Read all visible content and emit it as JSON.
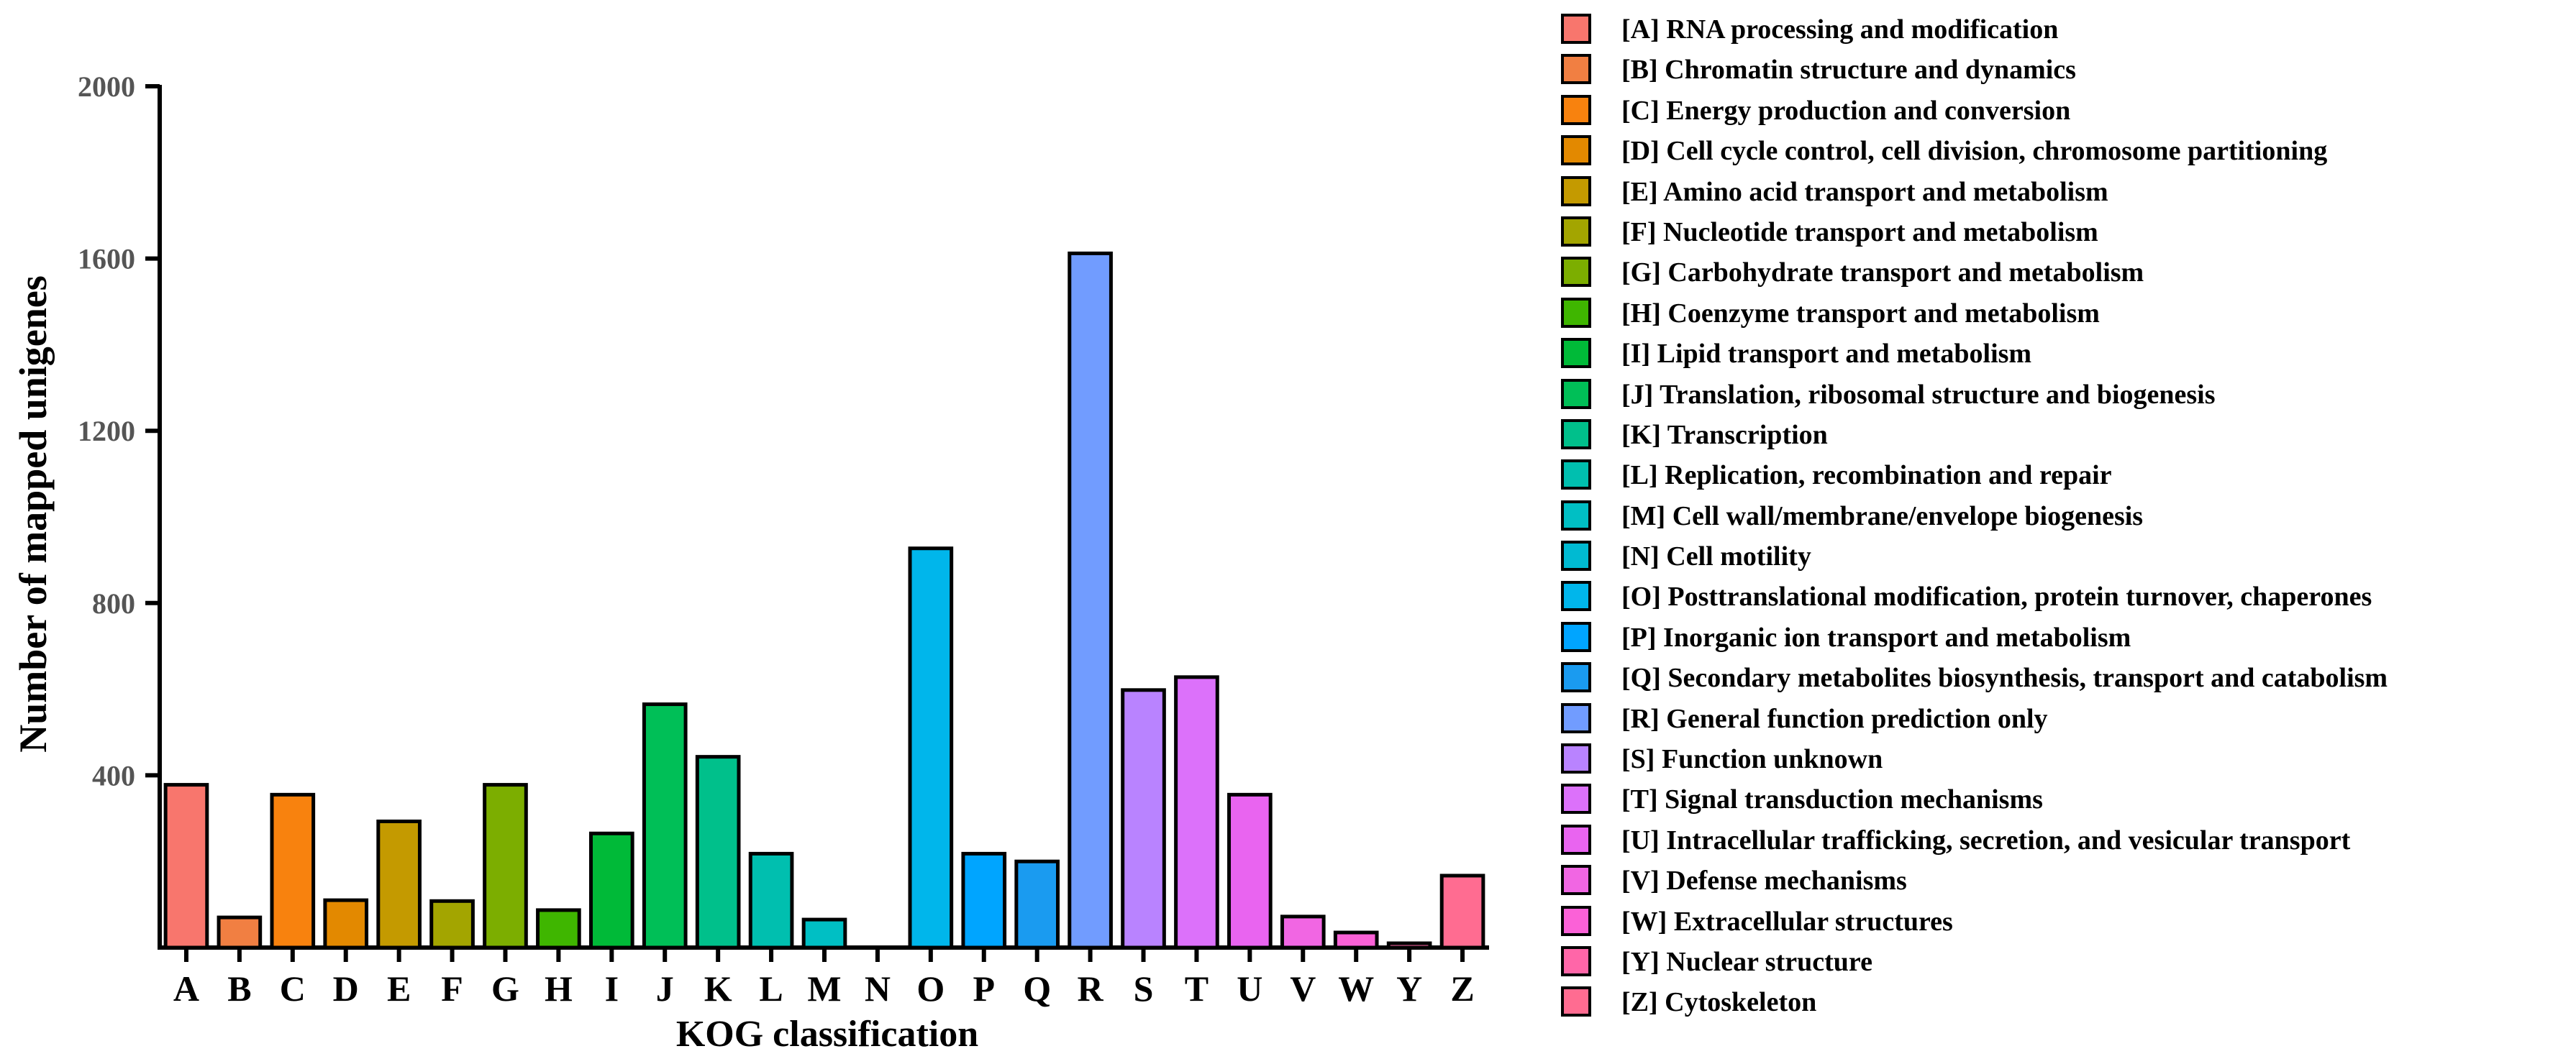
{
  "chart_data": {
    "type": "bar",
    "title": "",
    "xlabel": "KOG classification",
    "ylabel": "Number of mapped unigenes",
    "ylim": [
      0,
      2000
    ],
    "yticks": [
      400,
      800,
      1200,
      1600,
      2000
    ],
    "grid": false,
    "legend_position": "right",
    "categories": [
      "A",
      "B",
      "C",
      "D",
      "E",
      "F",
      "G",
      "H",
      "I",
      "J",
      "K",
      "L",
      "M",
      "N",
      "O",
      "P",
      "Q",
      "R",
      "S",
      "T",
      "U",
      "V",
      "W",
      "Y",
      "Z"
    ],
    "values": [
      378,
      70,
      355,
      110,
      293,
      108,
      378,
      87,
      265,
      565,
      443,
      218,
      65,
      0,
      927,
      218,
      200,
      1612,
      598,
      628,
      355,
      72,
      35,
      10,
      167
    ],
    "colors": [
      "#F8766D",
      "#F17F42",
      "#F8820E",
      "#E38900",
      "#C49A00",
      "#A3A500",
      "#7CAE00",
      "#3FB600",
      "#00BA38",
      "#00BF57",
      "#00C08B",
      "#00BFAF",
      "#00BFC4",
      "#00BAD2",
      "#00B6EB",
      "#00A5FF",
      "#1A9BF0",
      "#719CFF",
      "#B983FF",
      "#DC71FA",
      "#E964F0",
      "#F166E3",
      "#FB61D7",
      "#FF66A8",
      "#FF6C91"
    ],
    "legend": [
      {
        "key": "[A]",
        "label": "RNA processing and modification"
      },
      {
        "key": "[B]",
        "label": "Chromatin structure and dynamics"
      },
      {
        "key": "[C]",
        "label": "Energy production and conversion"
      },
      {
        "key": "[D]",
        "label": "Cell cycle control, cell division, chromosome partitioning"
      },
      {
        "key": "[E]",
        "label": "Amino acid transport and metabolism"
      },
      {
        "key": "[F]",
        "label": "Nucleotide transport and metabolism"
      },
      {
        "key": "[G]",
        "label": "Carbohydrate transport and metabolism"
      },
      {
        "key": "[H]",
        "label": "Coenzyme transport and metabolism"
      },
      {
        "key": "[I]",
        "label": "Lipid transport and metabolism"
      },
      {
        "key": "[J]",
        "label": "Translation, ribosomal structure and biogenesis"
      },
      {
        "key": "[K]",
        "label": "Transcription"
      },
      {
        "key": "[L]",
        "label": "Replication, recombination and repair"
      },
      {
        "key": "[M]",
        "label": "Cell wall/membrane/envelope biogenesis"
      },
      {
        "key": "[N]",
        "label": "Cell motility"
      },
      {
        "key": "[O]",
        "label": "Posttranslational modification, protein turnover, chaperones"
      },
      {
        "key": "[P]",
        "label": "Inorganic ion transport and metabolism"
      },
      {
        "key": "[Q]",
        "label": "Secondary metabolites biosynthesis, transport and catabolism"
      },
      {
        "key": "[R]",
        "label": "General function prediction only"
      },
      {
        "key": "[S]",
        "label": "Function unknown"
      },
      {
        "key": "[T]",
        "label": "Signal transduction mechanisms"
      },
      {
        "key": "[U]",
        "label": "Intracellular trafficking, secretion, and vesicular transport"
      },
      {
        "key": "[V]",
        "label": "Defense mechanisms"
      },
      {
        "key": "[W]",
        "label": "Extracellular structures"
      },
      {
        "key": "[Y]",
        "label": "Nuclear structure"
      },
      {
        "key": "[Z]",
        "label": "Cytoskeleton"
      }
    ]
  }
}
